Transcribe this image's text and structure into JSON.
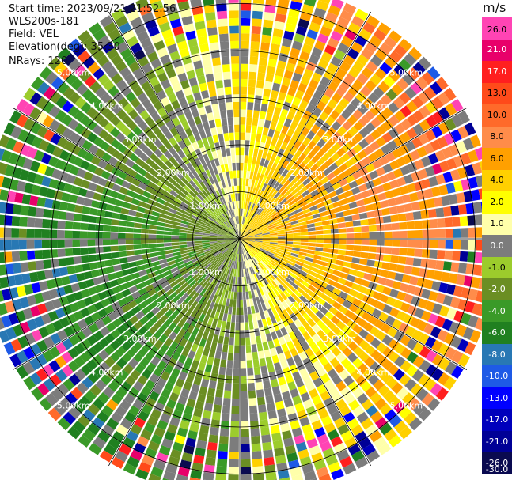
{
  "header": {
    "start_time": "Start time: 2023/09/21 21:52:56",
    "instrument": "WLS200s-181",
    "field": "Field: VEL",
    "elevation": "Elevation(deg): 35.30",
    "nrays": "NRays: 120"
  },
  "colorbar": {
    "unit": "m/s",
    "levels": [
      "26.0",
      "21.0",
      "17.0",
      "13.0",
      "10.0",
      "8.0",
      "6.0",
      "4.0",
      "2.0",
      "1.0",
      "0.0",
      "-1.0",
      "-2.0",
      "-4.0",
      "-6.0",
      "-8.0",
      "-10.0",
      "-13.0",
      "-17.0",
      "-21.0",
      "-26.0",
      "-30.0"
    ],
    "colors": [
      "#ff44b4",
      "#e8006a",
      "#ff1f1f",
      "#ff4a1a",
      "#ff6a2a",
      "#ff8c4a",
      "#ffa000",
      "#ffd000",
      "#ffff00",
      "#ffffaa",
      "#7c7c7c",
      "#9ccc2c",
      "#6b8e23",
      "#3a9a28",
      "#208020",
      "#2878b4",
      "#1e5ae6",
      "#0000ff",
      "#0000bc",
      "#000096",
      "#0a0a50"
    ]
  },
  "chart_data": {
    "type": "ppi",
    "field": "VEL",
    "units": "m/s",
    "nrays": 120,
    "elevation_deg": 35.3,
    "range_rings_km": [
      1.0,
      2.0,
      3.0,
      4.0,
      5.0
    ],
    "ring_labels": [
      "1.00km",
      "2.00km",
      "3.00km",
      "4.00km",
      "5.00km"
    ],
    "max_range_km": 5.5,
    "spokes_deg": [
      0,
      30,
      60,
      90,
      120,
      150,
      180,
      210,
      240,
      270,
      300,
      330
    ],
    "pattern": {
      "description": "radial velocity pattern",
      "positive_sector_center_deg": 75,
      "negative_sector_center_deg": 240,
      "near_max_abs_ms": 3.0,
      "far_max_abs_ms": 8.0
    }
  }
}
